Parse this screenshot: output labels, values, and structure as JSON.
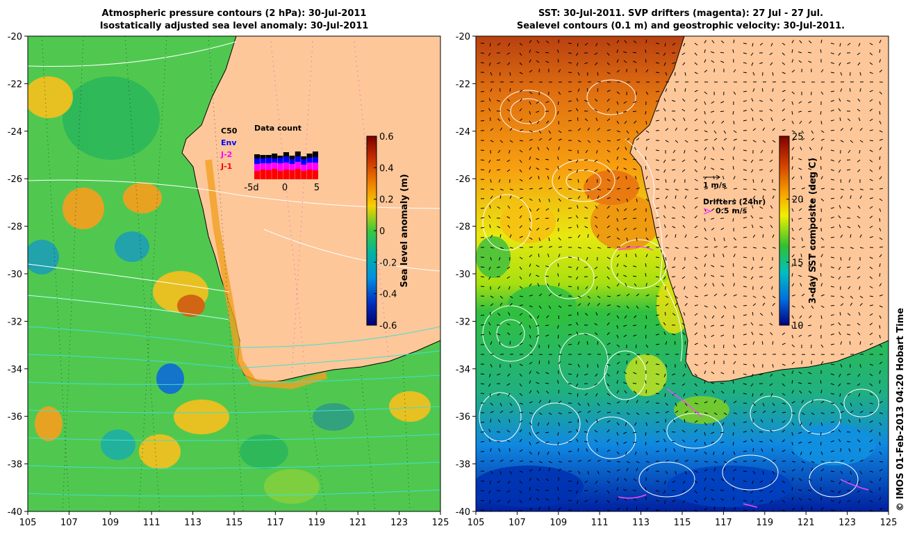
{
  "left_panel": {
    "title_line1": "Atmospheric pressure contours (2 hPa): 30-Jul-2011",
    "title_line2": "Isostatically adjusted sea level anomaly: 30-Jul-2011",
    "x_ticks": [
      "105",
      "107",
      "109",
      "111",
      "113",
      "115",
      "117",
      "119",
      "121",
      "123",
      "125"
    ],
    "y_ticks": [
      "-20",
      "-22",
      "-24",
      "-26",
      "-28",
      "-30",
      "-32",
      "-34",
      "-36",
      "-38",
      "-40"
    ],
    "colorbar": {
      "label": "Sea level anomaly (m)",
      "ticks": [
        "0.6",
        "0.4",
        "0.2",
        "0",
        "-0.2",
        "-0.4",
        "-0.6"
      ],
      "range": [
        -0.6,
        0.6
      ]
    },
    "data_count": {
      "title": "Data count",
      "legend": [
        {
          "label": "C50",
          "color": "#000000"
        },
        {
          "label": "Env",
          "color": "#0000ff"
        },
        {
          "label": "J-2",
          "color": "#ff00ff"
        },
        {
          "label": "J-1",
          "color": "#ff0000"
        }
      ],
      "x_ticks": [
        "-5d",
        "0",
        "5"
      ]
    }
  },
  "right_panel": {
    "title_line1": "SST: 30-Jul-2011. SVP drifters (magenta): 27 Jul - 27 Jul.",
    "title_line2": "Sealevel contours (0.1 m) and geostrophic velocity: 30-Jul-2011.",
    "x_ticks": [
      "105",
      "107",
      "109",
      "111",
      "113",
      "115",
      "117",
      "119",
      "121",
      "123",
      "125"
    ],
    "y_ticks": [
      "-20",
      "-22",
      "-24",
      "-26",
      "-28",
      "-30",
      "-32",
      "-34",
      "-36",
      "-38",
      "-40"
    ],
    "colorbar": {
      "label": "3-day SST composite (deg C)",
      "ticks": [
        "25",
        "20",
        "15",
        "10"
      ],
      "range": [
        10,
        25
      ]
    },
    "velocity_legend": "1 m/s",
    "drifter_legend_title": "Drifters (24hr)",
    "drifter_legend_value": "0.5 m/s"
  },
  "credit": "© IMOS 01-Feb-2013 04:20 Hobart Time",
  "colors": {
    "land": "#fdc79a",
    "drifter": "#ff44ff",
    "pressure_contour": "#ffffff",
    "pressure_contour_south": "#40e0d0"
  }
}
